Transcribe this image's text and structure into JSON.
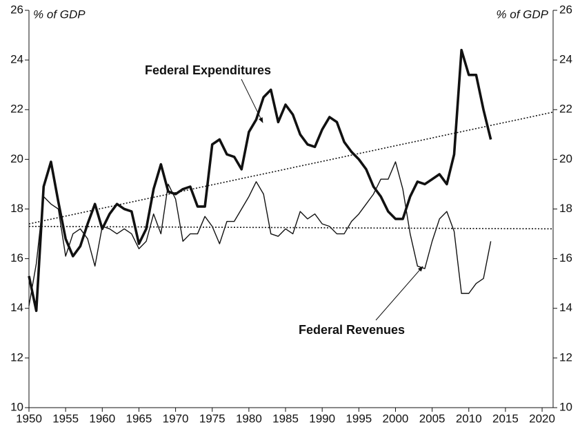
{
  "chart_data": {
    "type": "line",
    "y_label": "% of GDP",
    "y2_label": "% of GDP",
    "annotations": [
      "Federal Expenditures",
      "Federal Revenues"
    ],
    "x": [
      1950,
      1951,
      1952,
      1953,
      1954,
      1955,
      1956,
      1957,
      1958,
      1959,
      1960,
      1961,
      1962,
      1963,
      1964,
      1965,
      1966,
      1967,
      1968,
      1969,
      1970,
      1971,
      1972,
      1973,
      1974,
      1975,
      1976,
      1977,
      1978,
      1979,
      1980,
      1981,
      1982,
      1983,
      1984,
      1985,
      1986,
      1987,
      1988,
      1989,
      1990,
      1991,
      1992,
      1993,
      1994,
      1995,
      1996,
      1997,
      1998,
      1999,
      2000,
      2001,
      2002,
      2003,
      2004,
      2005,
      2006,
      2007,
      2008,
      2009,
      2010,
      2011,
      2012,
      2013
    ],
    "series": [
      {
        "color": "#111111",
        "width": 3.6,
        "values": [
          15.3,
          13.9,
          18.9,
          19.9,
          18.3,
          16.8,
          16.1,
          16.5,
          17.4,
          18.2,
          17.2,
          17.8,
          18.2,
          18.0,
          17.9,
          16.6,
          17.2,
          18.8,
          19.8,
          18.7,
          18.6,
          18.8,
          18.9,
          18.1,
          18.1,
          20.6,
          20.8,
          20.2,
          20.1,
          19.6,
          21.1,
          21.6,
          22.5,
          22.8,
          21.5,
          22.2,
          21.8,
          21.0,
          20.6,
          20.5,
          21.2,
          21.7,
          21.5,
          20.7,
          20.3,
          20.0,
          19.6,
          18.9,
          18.5,
          17.9,
          17.6,
          17.6,
          18.5,
          19.1,
          19.0,
          19.2,
          19.4,
          19.0,
          20.2,
          24.4,
          23.4,
          23.4,
          22.0,
          20.8
        ]
      },
      {
        "color": "#111111",
        "width": 1.4,
        "values": [
          14.1,
          15.8,
          18.5,
          18.2,
          18.0,
          16.1,
          17.0,
          17.2,
          16.8,
          15.7,
          17.3,
          17.2,
          17.0,
          17.2,
          17.0,
          16.4,
          16.7,
          17.8,
          17.0,
          19.0,
          18.4,
          16.7,
          17.0,
          17.0,
          17.7,
          17.3,
          16.6,
          17.5,
          17.5,
          18.0,
          18.5,
          19.1,
          18.6,
          17.0,
          16.9,
          17.2,
          17.0,
          17.9,
          17.6,
          17.8,
          17.4,
          17.3,
          17.0,
          17.0,
          17.5,
          17.8,
          18.2,
          18.6,
          19.2,
          19.2,
          19.9,
          18.8,
          17.0,
          15.7,
          15.6,
          16.7,
          17.6,
          17.9,
          17.1,
          14.6,
          14.6,
          15.0,
          15.2,
          16.7
        ]
      }
    ],
    "trendlines": [
      {
        "x": [
          1950,
          2021.5
        ],
        "values": [
          17.4,
          21.9
        ]
      },
      {
        "x": [
          1950,
          2021.5
        ],
        "values": [
          17.3,
          17.2
        ]
      }
    ],
    "xlim": [
      1950,
      2021.5
    ],
    "xticks": [
      1950,
      1955,
      1960,
      1965,
      1970,
      1975,
      1980,
      1985,
      1990,
      1995,
      2000,
      2005,
      2010,
      2015,
      2020
    ],
    "ylim": [
      10,
      26
    ],
    "yticks": [
      10,
      12,
      14,
      16,
      18,
      20,
      22,
      24,
      26
    ],
    "y2lim": [
      10,
      26
    ],
    "y2ticks": [
      10,
      12,
      14,
      16,
      18,
      20,
      22,
      24,
      26
    ]
  }
}
